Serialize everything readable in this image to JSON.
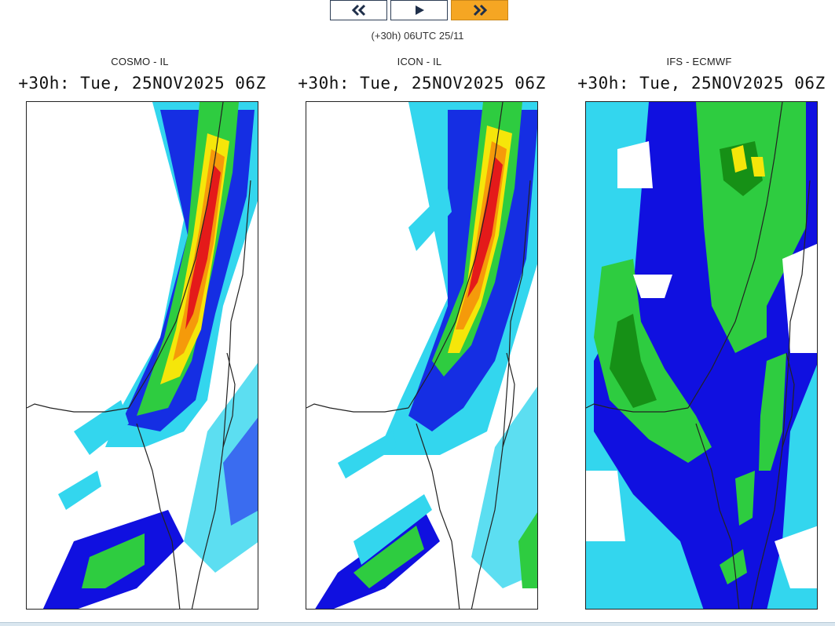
{
  "controls": {
    "prev_icon": "double-chevron-left-icon",
    "play_icon": "play-icon",
    "next_icon": "double-chevron-right-icon",
    "active_color": "#f5a623",
    "border_color": "#2d3d55"
  },
  "timestamp": "(+30h) 06UTC 25/11",
  "panels": [
    {
      "model": "COSMO - IL",
      "valid": "+30h: Tue, 25NOV2025 06Z"
    },
    {
      "model": "ICON - IL",
      "valid": "+30h: Tue, 25NOV2025 06Z"
    },
    {
      "model": "IFS - ECMWF",
      "valid": "+30h: Tue, 25NOV2025 06Z"
    }
  ],
  "palette": {
    "light_cyan": "#33d6ee",
    "blue": "#3a6cf0",
    "dark_blue": "#1010e0",
    "green": "#2ecc40",
    "dark_green": "#169016",
    "yellow": "#f5e60a",
    "orange": "#f59a0a",
    "red": "#e41a1a"
  }
}
